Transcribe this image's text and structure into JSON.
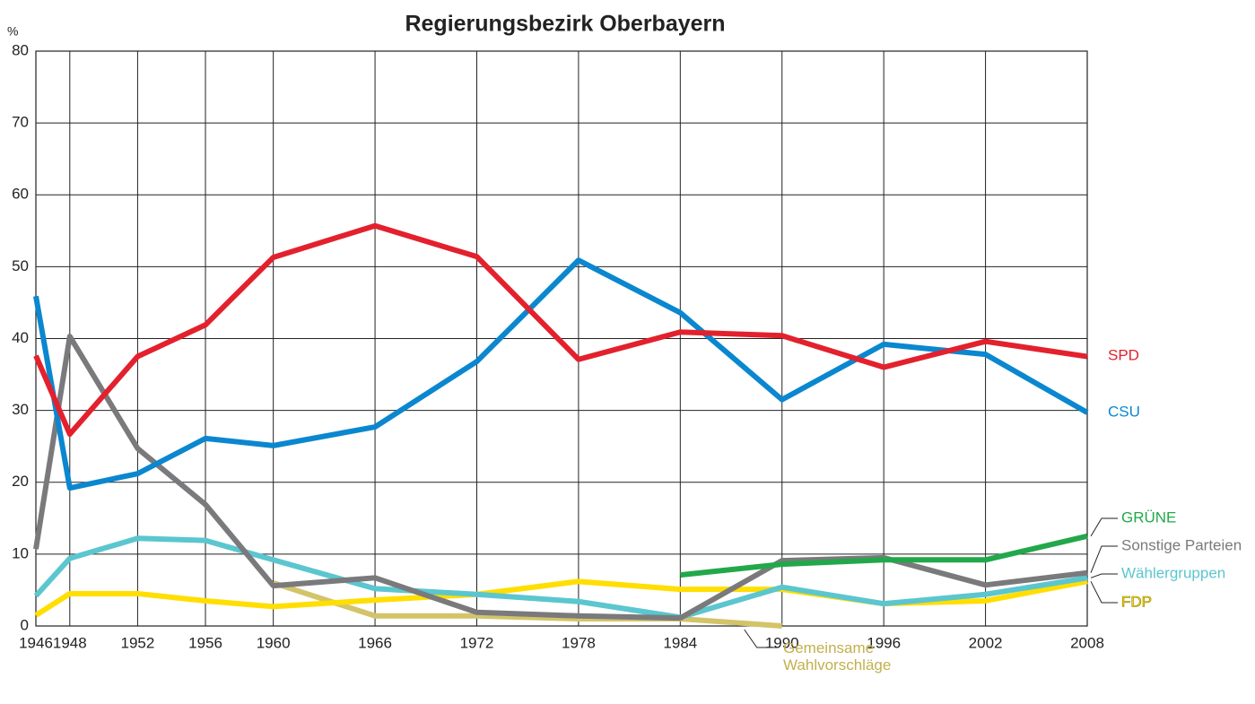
{
  "chart_data": {
    "type": "line",
    "title": "Regierungsbezirk Oberbayern",
    "y_label": "%",
    "x": [
      1946,
      1948,
      1952,
      1956,
      1960,
      1966,
      1972,
      1978,
      1984,
      1990,
      1996,
      2002,
      2008
    ],
    "xlim": [
      1946,
      2008
    ],
    "xticks": [
      1946,
      1948,
      1952,
      1956,
      1960,
      1966,
      1972,
      1978,
      1984,
      1990,
      1996,
      2002,
      2008
    ],
    "ylim": [
      0,
      80
    ],
    "yticks": [
      0,
      10,
      20,
      30,
      40,
      50,
      60,
      70,
      80
    ],
    "grid": true,
    "series": [
      {
        "name": "Gemeinsame Wahlvorschläge",
        "color": "#d3c46a",
        "values": [
          null,
          null,
          null,
          null,
          6.0,
          1.4,
          1.4,
          1.0,
          1.0,
          0.0,
          null,
          null,
          null
        ]
      },
      {
        "name": "FDP",
        "color": "#ffde00",
        "values": [
          1.5,
          4.5,
          4.5,
          3.5,
          2.7,
          3.6,
          4.4,
          6.2,
          5.1,
          5.1,
          3.1,
          3.5,
          6.2
        ]
      },
      {
        "name": "Wählergruppen",
        "color": "#5bc6cf",
        "values": [
          4.2,
          9.4,
          12.2,
          11.9,
          9.2,
          5.2,
          4.4,
          3.4,
          1.2,
          5.4,
          3.1,
          4.4,
          6.7
        ]
      },
      {
        "name": "Sonstige Parteien",
        "color": "#7a7a7c",
        "values": [
          10.7,
          40.3,
          24.7,
          16.9,
          5.6,
          6.7,
          1.9,
          1.4,
          1.1,
          9.1,
          9.5,
          5.7,
          7.4
        ]
      },
      {
        "name": "GRÜNE",
        "color": "#22a84a",
        "values": [
          null,
          null,
          null,
          null,
          null,
          null,
          null,
          null,
          7.1,
          8.6,
          9.2,
          9.2,
          12.5
        ]
      },
      {
        "name": "CSU",
        "color": "#0a87cf",
        "values": [
          45.9,
          19.2,
          21.2,
          26.1,
          25.1,
          27.7,
          36.8,
          50.9,
          43.6,
          31.5,
          39.2,
          37.8,
          29.7
        ]
      },
      {
        "name": "SPD",
        "color": "#e3212d",
        "values": [
          37.6,
          26.7,
          37.5,
          41.9,
          51.3,
          55.7,
          51.4,
          37.1,
          40.9,
          40.4,
          36.0,
          39.6,
          37.5
        ]
      }
    ]
  }
}
